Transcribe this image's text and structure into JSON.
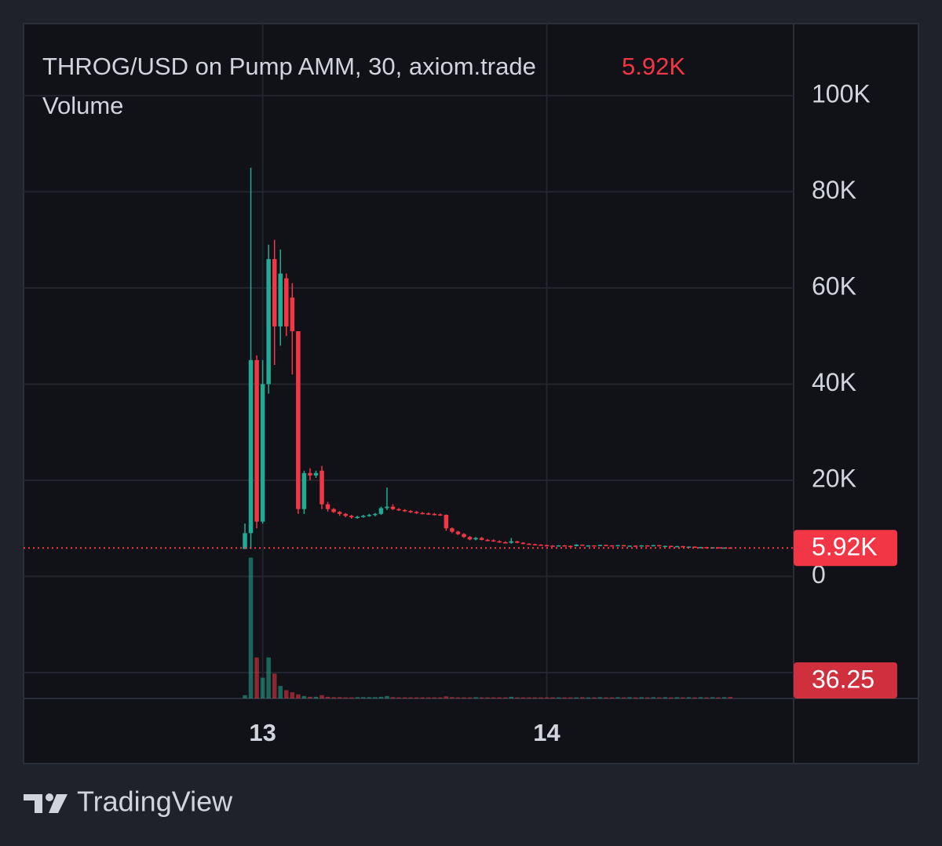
{
  "chart_data": {
    "type": "candlestick",
    "title": "THROG/USD on Pump AMM, 30, axiom.trade",
    "volume_title": "Volume",
    "watermark": "TradingView",
    "up_color": "#22ab94",
    "down_color": "#f23645",
    "categories": [
      null,
      null,
      null,
      "13",
      null,
      null,
      null,
      null,
      null,
      null,
      null,
      null,
      null,
      null,
      null,
      null,
      null,
      null,
      null,
      null,
      null,
      null,
      null,
      null,
      null,
      null,
      null,
      null,
      null,
      null,
      null,
      null,
      null,
      null,
      null,
      null,
      null,
      null,
      null,
      null,
      null,
      null,
      null,
      null,
      null,
      null,
      null,
      null,
      null,
      null,
      null,
      "14",
      null,
      null,
      null,
      null,
      null,
      null,
      null,
      null,
      null,
      null,
      null,
      null,
      null,
      null,
      null,
      null,
      null,
      null,
      null,
      null,
      null,
      null,
      null,
      null,
      null,
      null,
      null,
      null,
      null,
      null,
      null
    ],
    "open": [
      5700,
      9000,
      45000,
      11400,
      40000,
      66000,
      52000,
      62000,
      58000,
      51000,
      14000,
      21500,
      21000,
      22000,
      15000,
      14000,
      13400,
      13000,
      12600,
      12300,
      12400,
      12600,
      12800,
      13000,
      14200,
      14500,
      14000,
      13800,
      13600,
      13400,
      13200,
      13100,
      13000,
      12900,
      12800,
      10000,
      9300,
      8800,
      8200,
      7700,
      8000,
      7600,
      7500,
      7300,
      7100,
      7000,
      7300,
      7000,
      6800,
      6700,
      6600,
      6500,
      6400,
      6350,
      6450,
      6350,
      6300,
      6600,
      6400,
      6450,
      6350,
      6550,
      6450,
      6400,
      6500,
      6350,
      6400,
      6300,
      6450,
      6350,
      6500,
      6300,
      6350,
      6200,
      6300,
      6150,
      6200,
      6050,
      6100,
      6000,
      6050,
      5950,
      6000
    ],
    "high": [
      11000,
      85000,
      46000,
      45000,
      69000,
      70000,
      68000,
      63000,
      61000,
      51000,
      22000,
      22500,
      22000,
      23000,
      15500,
      14200,
      13600,
      13200,
      12800,
      12600,
      12800,
      13000,
      13200,
      14500,
      18500,
      15000,
      14200,
      14000,
      13800,
      13600,
      13400,
      13300,
      13200,
      13100,
      12900,
      10200,
      9500,
      9000,
      8400,
      8200,
      8200,
      7800,
      7700,
      7500,
      7300,
      8000,
      7400,
      7100,
      6900,
      6800,
      6700,
      6600,
      6500,
      6500,
      6550,
      6450,
      6700,
      6650,
      6500,
      6500,
      6600,
      6600,
      6500,
      6550,
      6550,
      6450,
      6450,
      6500,
      6500,
      6550,
      6550,
      6400,
      6400,
      6350,
      6350,
      6250,
      6250,
      6150,
      6150,
      6100,
      6100,
      6050,
      6050
    ],
    "low": [
      5700,
      5700,
      10000,
      11000,
      38000,
      44000,
      48000,
      50000,
      42000,
      13000,
      13000,
      20000,
      20500,
      14000,
      13500,
      13200,
      12600,
      12300,
      12000,
      12000,
      12200,
      12400,
      12500,
      12800,
      13800,
      13800,
      13600,
      13400,
      13200,
      13000,
      12900,
      12800,
      12700,
      12600,
      9500,
      9000,
      8600,
      8000,
      7500,
      7500,
      7500,
      7300,
      7200,
      7000,
      6900,
      6800,
      6900,
      6700,
      6600,
      6500,
      6400,
      6300,
      6300,
      6250,
      6300,
      6250,
      6250,
      6350,
      6300,
      6300,
      6300,
      6400,
      6350,
      6350,
      6300,
      6250,
      6250,
      6250,
      6300,
      6300,
      6250,
      6200,
      6150,
      6150,
      6100,
      6050,
      6000,
      6000,
      5950,
      5950,
      5900,
      5900,
      5900
    ],
    "close": [
      9000,
      45000,
      11400,
      40000,
      66000,
      52000,
      63000,
      52000,
      51000,
      14000,
      21500,
      21000,
      21500,
      15000,
      14000,
      13400,
      13000,
      12600,
      12300,
      12400,
      12600,
      12800,
      13000,
      14200,
      14500,
      14000,
      13800,
      13600,
      13400,
      13200,
      13100,
      13000,
      12900,
      12800,
      10000,
      9300,
      8800,
      8200,
      7700,
      8000,
      7600,
      7500,
      7300,
      7100,
      7000,
      7300,
      7000,
      6800,
      6700,
      6600,
      6500,
      6400,
      6350,
      6450,
      6350,
      6300,
      6600,
      6400,
      6450,
      6350,
      6550,
      6450,
      6400,
      6500,
      6350,
      6400,
      6300,
      6450,
      6350,
      6500,
      6300,
      6350,
      6200,
      6300,
      6150,
      6200,
      6050,
      6100,
      6000,
      6050,
      5950,
      6000,
      5920
    ],
    "volume": [
      80,
      3400,
      990,
      500,
      990,
      600,
      300,
      200,
      150,
      100,
      60,
      40,
      40,
      80,
      40,
      30,
      30,
      25,
      25,
      30,
      30,
      30,
      30,
      40,
      60,
      30,
      25,
      25,
      25,
      25,
      25,
      25,
      25,
      25,
      50,
      30,
      25,
      25,
      25,
      30,
      25,
      25,
      25,
      25,
      25,
      40,
      25,
      25,
      25,
      25,
      25,
      25,
      25,
      25,
      25,
      25,
      25,
      30,
      25,
      25,
      30,
      25,
      25,
      30,
      25,
      30,
      25,
      30,
      25,
      30,
      25,
      30,
      25,
      30,
      25,
      30,
      25,
      30,
      25,
      30,
      25,
      30,
      36.25
    ],
    "last_value": 5920,
    "last_value_label": "5.92K",
    "ylim": [
      -20000,
      115000
    ],
    "yticks": [
      {
        "value": 0,
        "label": "0"
      },
      {
        "value": 20000,
        "label": "20K"
      },
      {
        "value": 40000,
        "label": "40K"
      },
      {
        "value": 60000,
        "label": "60K"
      },
      {
        "value": 80000,
        "label": "80K"
      },
      {
        "value": 100000,
        "label": "100K"
      }
    ],
    "volume_ylim": [
      0,
      3600
    ],
    "grid": true
  }
}
